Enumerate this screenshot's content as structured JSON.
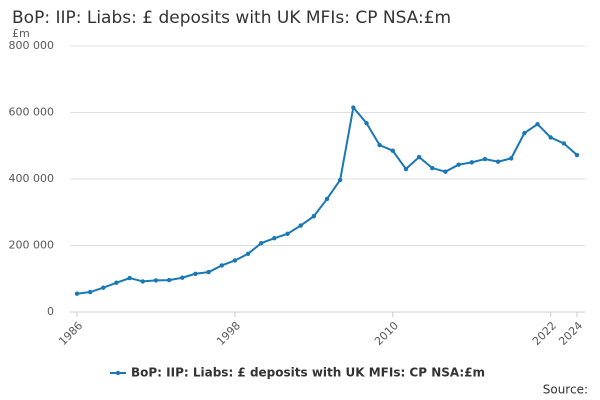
{
  "chart_data": {
    "type": "line",
    "title": "BoP: IIP: Liabs: £ deposits with UK MFIs: CP NSA:£m",
    "y_unit": "£m",
    "source": "Source:",
    "x": [
      1986,
      1987,
      1988,
      1989,
      1990,
      1991,
      1992,
      1993,
      1994,
      1995,
      1996,
      1997,
      1998,
      1999,
      2000,
      2001,
      2002,
      2003,
      2004,
      2005,
      2006,
      2007,
      2008,
      2009,
      2010,
      2011,
      2012,
      2013,
      2014,
      2015,
      2016,
      2017,
      2018,
      2019,
      2020,
      2021,
      2022,
      2023,
      2024
    ],
    "series": [
      {
        "name": "BoP: IIP: Liabs: £ deposits with UK MFIs: CP NSA:£m",
        "color": "#1a78b4",
        "values": [
          55000,
          60000,
          73000,
          88000,
          102000,
          92000,
          95000,
          96000,
          103000,
          115000,
          120000,
          140000,
          155000,
          175000,
          207000,
          222000,
          235000,
          260000,
          288000,
          340000,
          397000,
          615000,
          568000,
          502000,
          485000,
          430000,
          466000,
          433000,
          422000,
          443000,
          450000,
          460000,
          452000,
          462000,
          538000,
          565000,
          525000,
          507000,
          472000
        ]
      }
    ],
    "xlim": [
      1986,
      2024
    ],
    "xticks": [
      1986,
      1998,
      2010,
      2022,
      2024
    ],
    "ylim": [
      0,
      800000
    ],
    "yticks": [
      0,
      {
        "value": 200000,
        "label": "200 000"
      },
      {
        "value": 400000,
        "label": "400 000"
      },
      {
        "value": 600000,
        "label": "600 000"
      },
      {
        "value": 800000,
        "label": "800 000"
      }
    ],
    "grid": true
  }
}
